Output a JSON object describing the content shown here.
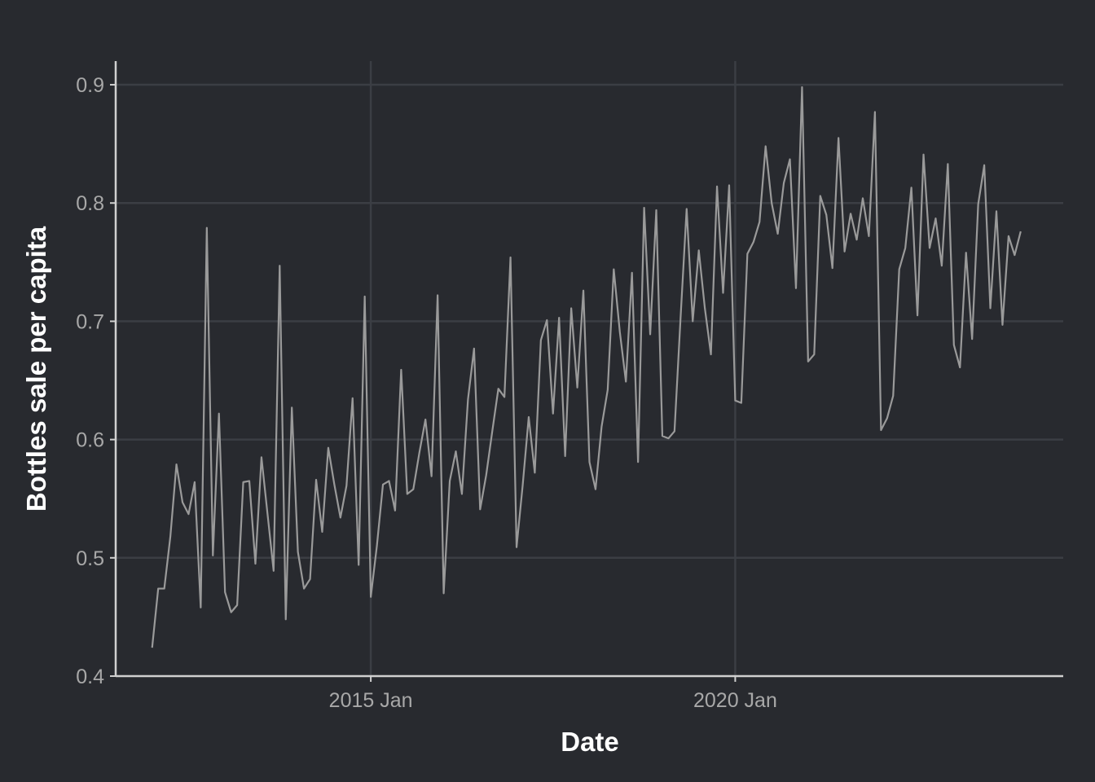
{
  "chart_data": {
    "type": "line",
    "xlabel": "Date",
    "ylabel": "Bottles sale per capita",
    "x_ticks": [
      {
        "label": "2015 Jan",
        "x": 2015.0
      },
      {
        "label": "2020 Jan",
        "x": 2020.0
      }
    ],
    "y_ticks": [
      0.4,
      0.5,
      0.6,
      0.7,
      0.8,
      0.9
    ],
    "xlim": [
      2011.5,
      2024.5
    ],
    "ylim": [
      0.4,
      0.92
    ],
    "grid": true,
    "legend": "none",
    "colors": {
      "background": "#282a2f",
      "grid": "#3b3e44",
      "axis": "#d0d0d0",
      "line": "#9a9a9a"
    },
    "series": [
      {
        "x_start": "2012 Jan",
        "x_step": "1 month",
        "values": [
          0.424,
          0.474,
          0.474,
          0.518,
          0.579,
          0.547,
          0.537,
          0.564,
          0.458,
          0.779,
          0.502,
          0.622,
          0.471,
          0.454,
          0.46,
          0.564,
          0.565,
          0.495,
          0.585,
          0.537,
          0.489,
          0.747,
          0.448,
          0.627,
          0.505,
          0.474,
          0.482,
          0.566,
          0.522,
          0.593,
          0.562,
          0.534,
          0.561,
          0.635,
          0.494,
          0.721,
          0.467,
          0.51,
          0.562,
          0.565,
          0.54,
          0.659,
          0.554,
          0.558,
          0.589,
          0.617,
          0.569,
          0.722,
          0.47,
          0.565,
          0.59,
          0.554,
          0.634,
          0.677,
          0.541,
          0.57,
          0.607,
          0.643,
          0.636,
          0.754,
          0.509,
          0.561,
          0.619,
          0.572,
          0.684,
          0.701,
          0.622,
          0.703,
          0.586,
          0.711,
          0.644,
          0.726,
          0.581,
          0.558,
          0.611,
          0.642,
          0.744,
          0.691,
          0.649,
          0.741,
          0.581,
          0.796,
          0.689,
          0.794,
          0.603,
          0.601,
          0.607,
          0.703,
          0.795,
          0.7,
          0.76,
          0.711,
          0.672,
          0.814,
          0.724,
          0.815,
          0.633,
          0.631,
          0.757,
          0.767,
          0.784,
          0.848,
          0.8,
          0.774,
          0.817,
          0.837,
          0.728,
          0.898,
          0.666,
          0.672,
          0.806,
          0.79,
          0.745,
          0.855,
          0.759,
          0.791,
          0.769,
          0.804,
          0.772,
          0.877,
          0.608,
          0.618,
          0.637,
          0.744,
          0.762,
          0.813,
          0.705,
          0.841,
          0.762,
          0.787,
          0.747,
          0.833,
          0.68,
          0.661,
          0.758,
          0.685,
          0.799,
          0.832,
          0.711,
          0.793,
          0.697,
          0.772,
          0.756,
          0.776
        ]
      }
    ]
  }
}
